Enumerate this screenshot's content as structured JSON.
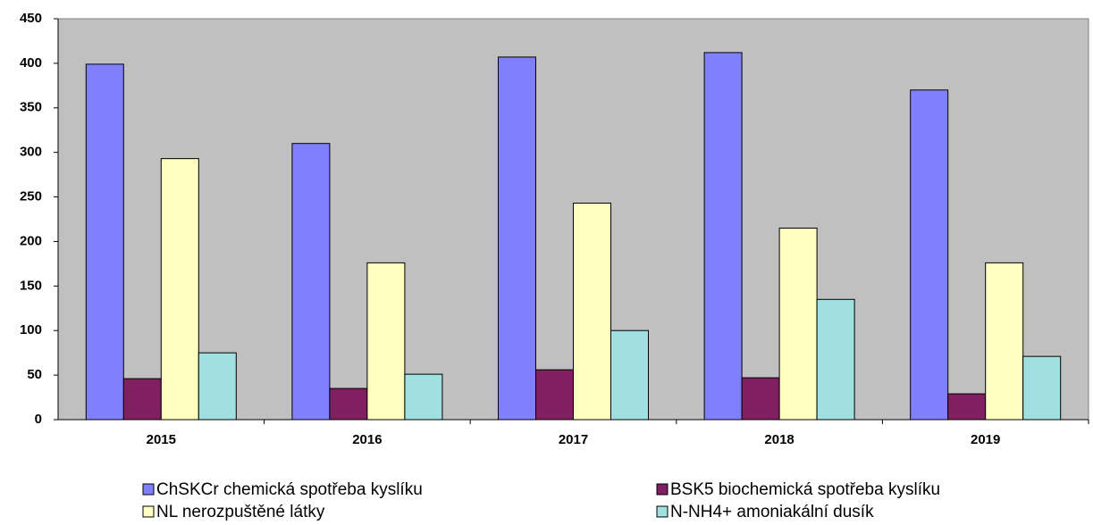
{
  "chart_data": {
    "type": "bar",
    "categories": [
      "2015",
      "2016",
      "2017",
      "2018",
      "2019"
    ],
    "series": [
      {
        "name": "ChSKCr chemická spotřeba kyslíku",
        "color": "#8080ff",
        "values": [
          399,
          310,
          407,
          412,
          370
        ]
      },
      {
        "name": "BSK5 biochemická spotřeba kyslíku",
        "color": "#802060",
        "values": [
          46,
          35,
          56,
          47,
          29
        ]
      },
      {
        "name": "NL nerozpuštěné látky",
        "color": "#ffffc0",
        "values": [
          293,
          176,
          243,
          215,
          176
        ]
      },
      {
        "name": "N-NH4+ amoniakální dusík",
        "color": "#a0e0e0",
        "values": [
          75,
          51,
          100,
          135,
          71
        ]
      }
    ],
    "ylim": [
      0,
      450
    ],
    "yticks": [
      0,
      50,
      100,
      150,
      200,
      250,
      300,
      350,
      400,
      450
    ],
    "plot_background": "#c0c0c0"
  }
}
